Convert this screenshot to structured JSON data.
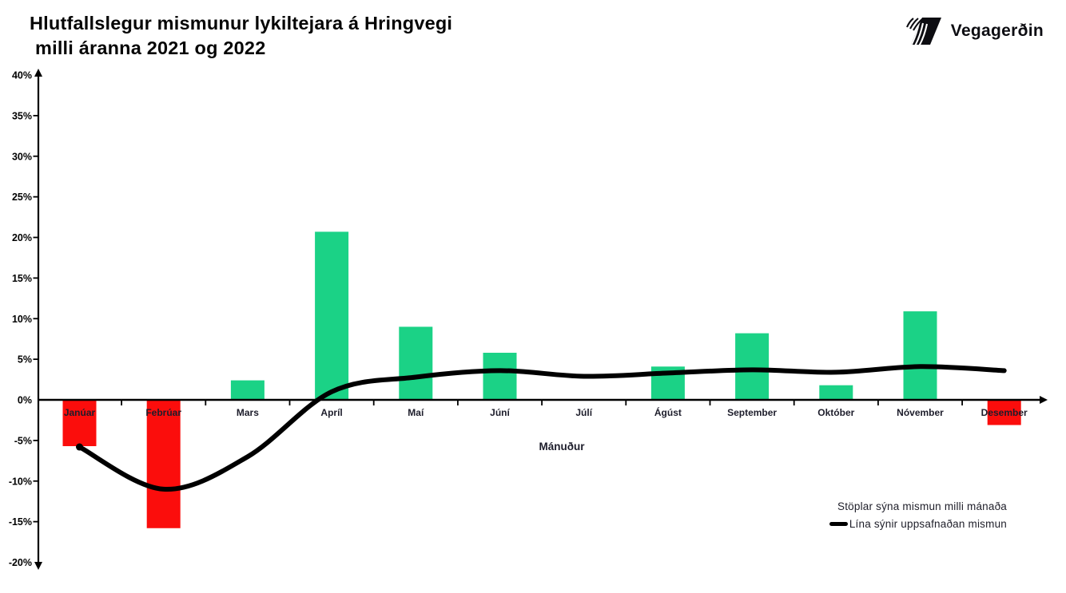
{
  "header": {
    "title_line1": "Hlutfallslegur mismunur lykiltejara á Hringvegi",
    "title_line2": "milli áranna 2021 og 2022",
    "brand": "Vegagerðin"
  },
  "chart_data": {
    "type": "bar",
    "subtype": "bar-line-combo",
    "title": "Hlutfallslegur mismunur lykiltejara á Hringvegi milli áranna 2021 og 2022",
    "categories": [
      "Janúar",
      "Febrúar",
      "Mars",
      "Apríl",
      "Maí",
      "Júní",
      "Júlí",
      "Ágúst",
      "September",
      "Október",
      "Nóvember",
      "Desember"
    ],
    "series": [
      {
        "name": "Stöplar sýna mismun milli mánaða",
        "type": "bar",
        "values": [
          -5.7,
          -15.8,
          2.4,
          20.7,
          9.0,
          5.8,
          0.0,
          4.1,
          8.2,
          1.8,
          10.9,
          -3.1
        ]
      },
      {
        "name": "Lína sýnir uppsafnaðan mismun",
        "type": "line",
        "values": [
          -5.8,
          -11.0,
          -7.0,
          1.0,
          2.8,
          3.6,
          2.9,
          3.3,
          3.7,
          3.4,
          4.1,
          3.6
        ]
      }
    ],
    "xlabel": "Mánuður",
    "ylabel": "",
    "ylim": [
      -20,
      40
    ],
    "ytick_step": 5,
    "ytick_suffix": "%",
    "grid": false,
    "legend_position": "bottom-right",
    "legend": [
      "Stöplar sýna mismun milli mánaða",
      "Lína sýnir uppsafnaðan mismun"
    ],
    "colors": {
      "bar_positive": "#1BD286",
      "bar_negative": "#FB0D0C",
      "line": "#000000",
      "axis": "#000000",
      "month_label": "#1D1D2B",
      "ytick_label": "#000000"
    }
  }
}
